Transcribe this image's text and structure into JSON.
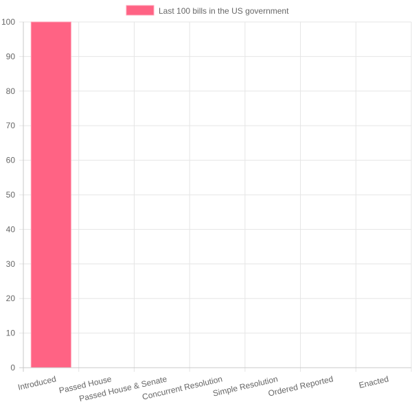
{
  "chart_data": {
    "type": "bar",
    "categories": [
      "Introduced",
      "Passed House",
      "Passed House & Senate",
      "Concurrent Resolution",
      "Simple Resolution",
      "Ordered Reported",
      "Enacted"
    ],
    "series": [
      {
        "name": "Last 100 bills in the US government",
        "values": [
          100,
          0,
          0,
          0,
          0,
          0,
          0
        ]
      }
    ],
    "ylim": [
      0,
      100
    ],
    "yticks": [
      0,
      10,
      20,
      30,
      40,
      50,
      60,
      70,
      80,
      90,
      100
    ],
    "grid": true,
    "legend_position": "top",
    "colors": {
      "bar_fill": "#ff6384",
      "bar_border": "#ff9fb4",
      "grid": "#e5e5e5",
      "axis": "#c8c8c8",
      "text": "#666666"
    }
  }
}
